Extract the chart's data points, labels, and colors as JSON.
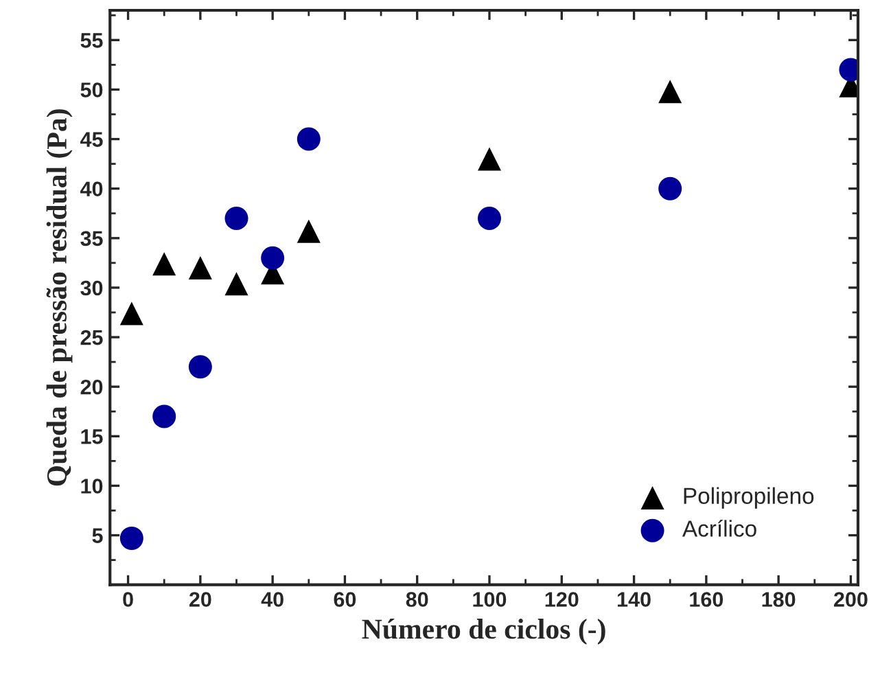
{
  "chart_data": {
    "type": "scatter",
    "xlabel": "Número de ciclos (-)",
    "ylabel": "Queda de pressão residual (Pa)",
    "xlim": [
      -5,
      202
    ],
    "ylim": [
      0,
      58
    ],
    "xticks": [
      0,
      20,
      40,
      60,
      80,
      100,
      120,
      140,
      160,
      180,
      200
    ],
    "yticks": [
      5,
      10,
      15,
      20,
      25,
      30,
      35,
      40,
      45,
      50,
      55
    ],
    "legend": "bottom right",
    "grid": false,
    "series": [
      {
        "name": "Polipropileno",
        "color": "#000000",
        "marker": "triangle",
        "x": [
          1,
          10,
          20,
          30,
          40,
          50,
          100,
          150,
          200
        ],
        "values": [
          27.4,
          32.4,
          32.0,
          30.4,
          31.5,
          35.7,
          43.0,
          49.8,
          50.4
        ]
      },
      {
        "name": "Acrílico",
        "color": "#000099",
        "marker": "circle",
        "x": [
          1,
          10,
          20,
          30,
          40,
          50,
          100,
          150,
          200
        ],
        "values": [
          4.7,
          17,
          22,
          37,
          33,
          45,
          37,
          40,
          52
        ]
      }
    ]
  }
}
